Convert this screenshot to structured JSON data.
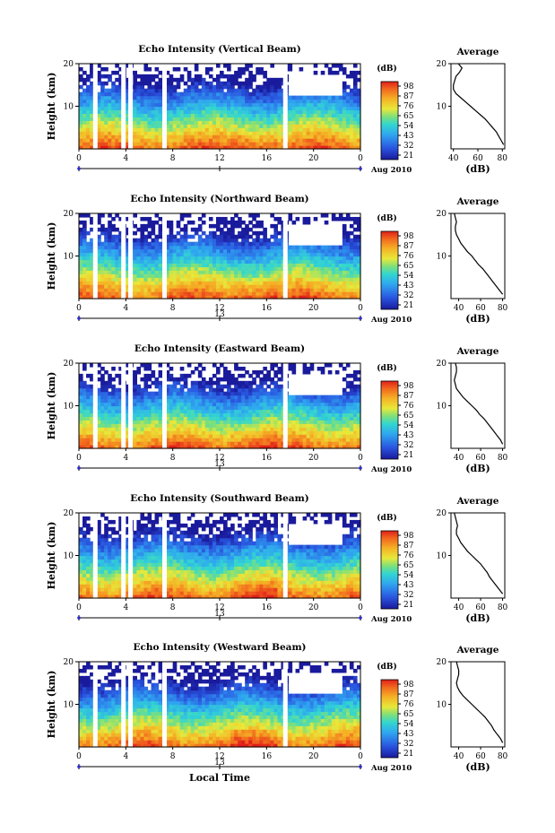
{
  "chart_data": [
    {
      "type": "heatmap",
      "title": "Echo Intensity (Vertical Beam)",
      "ylabel": "Height (km)",
      "ylim": [
        0,
        20
      ],
      "yticks": [
        "10",
        "20"
      ],
      "xlim": [
        0,
        24
      ],
      "xticks": [
        "0",
        "4",
        "8",
        "12",
        "16",
        "20",
        "0"
      ],
      "date_label": "Aug 2010",
      "date_tick": "",
      "colorbar": {
        "unit": "(dB)",
        "labels": [
          "98",
          "87",
          "76",
          "65",
          "54",
          "43",
          "32",
          "21"
        ]
      },
      "gaps": [
        1.4,
        3.8,
        4.4,
        7.3,
        17.6
      ],
      "average_profile": {
        "title": "Average",
        "xlabel": "(dB)",
        "xlim": [
          38,
          82
        ],
        "xticks": [
          "40",
          "60",
          "80"
        ],
        "yticks": [
          "10",
          "20"
        ],
        "height": [
          1,
          2,
          3,
          4,
          5,
          6,
          7,
          8,
          9,
          10,
          11,
          12,
          13,
          14,
          15,
          16,
          17,
          18,
          19,
          20
        ],
        "value": [
          81,
          79,
          77,
          75,
          72,
          69,
          66,
          62,
          58,
          54,
          50,
          46,
          42,
          40,
          40,
          41,
          42,
          45,
          47,
          44
        ]
      }
    },
    {
      "type": "heatmap",
      "title": "Echo Intensity (Northward Beam)",
      "ylabel": "Height (km)",
      "ylim": [
        0,
        20
      ],
      "yticks": [
        "10",
        "20"
      ],
      "xlim": [
        0,
        24
      ],
      "xticks": [
        "0",
        "4",
        "8",
        "12",
        "16",
        "20",
        "0"
      ],
      "date_label": "Aug 2010",
      "date_tick": "13",
      "colorbar": {
        "unit": "(dB)",
        "labels": [
          "98",
          "87",
          "76",
          "65",
          "54",
          "43",
          "32",
          "21"
        ]
      },
      "gaps": [
        1.4,
        3.8,
        4.4,
        7.3,
        17.6
      ],
      "average_profile": {
        "title": "Average",
        "xlabel": "(dB)",
        "xlim": [
          33,
          82
        ],
        "xticks": [
          "40",
          "60",
          "80"
        ],
        "yticks": [
          "10",
          "20"
        ],
        "height": [
          1,
          2,
          3,
          4,
          5,
          6,
          7,
          8,
          9,
          10,
          11,
          12,
          13,
          14,
          15,
          16,
          17,
          18,
          19,
          20
        ],
        "value": [
          80,
          77,
          74,
          71,
          68,
          65,
          62,
          58,
          55,
          52,
          48,
          45,
          42,
          40,
          38,
          37,
          37,
          38,
          37,
          36
        ]
      }
    },
    {
      "type": "heatmap",
      "title": "Echo Intensity (Eastward Beam)",
      "ylabel": "Height (km)",
      "ylim": [
        0,
        20
      ],
      "yticks": [
        "10",
        "20"
      ],
      "xlim": [
        0,
        24
      ],
      "xticks": [
        "0",
        "4",
        "8",
        "12",
        "16",
        "20",
        "0"
      ],
      "date_label": "Aug 2010",
      "date_tick": "13",
      "colorbar": {
        "unit": "(dB)",
        "labels": [
          "98",
          "87",
          "76",
          "65",
          "54",
          "43",
          "32",
          "21"
        ]
      },
      "gaps": [
        1.4,
        3.8,
        4.4,
        7.3,
        17.6
      ],
      "average_profile": {
        "title": "Average",
        "xlabel": "(dB)",
        "xlim": [
          33,
          82
        ],
        "xticks": [
          "40",
          "60",
          "80"
        ],
        "yticks": [
          "10",
          "20"
        ],
        "height": [
          1,
          2,
          3,
          4,
          5,
          6,
          7,
          8,
          9,
          10,
          11,
          12,
          13,
          14,
          15,
          16,
          17,
          18,
          19,
          20
        ],
        "value": [
          80,
          78,
          75,
          72,
          69,
          66,
          63,
          59,
          56,
          52,
          48,
          44,
          41,
          38,
          37,
          36,
          37,
          38,
          38,
          37
        ]
      }
    },
    {
      "type": "heatmap",
      "title": "Echo Intensity (Southward Beam)",
      "ylabel": "Height (km)",
      "ylim": [
        0,
        20
      ],
      "yticks": [
        "10",
        "20"
      ],
      "xlim": [
        0,
        24
      ],
      "xticks": [
        "0",
        "4",
        "8",
        "12",
        "16",
        "20",
        "0"
      ],
      "date_label": "Aug 2010",
      "date_tick": "13",
      "colorbar": {
        "unit": "(dB)",
        "labels": [
          "98",
          "87",
          "76",
          "65",
          "54",
          "43",
          "32",
          "21"
        ]
      },
      "gaps": [
        1.4,
        3.8,
        4.4,
        7.3,
        17.6
      ],
      "average_profile": {
        "title": "Average",
        "xlabel": "(dB)",
        "xlim": [
          33,
          82
        ],
        "xticks": [
          "40",
          "60",
          "80"
        ],
        "yticks": [
          "10",
          "20"
        ],
        "height": [
          1,
          2,
          3,
          4,
          5,
          6,
          7,
          8,
          9,
          10,
          11,
          12,
          13,
          14,
          15,
          16,
          17,
          18,
          19,
          20
        ],
        "value": [
          80,
          77,
          74,
          71,
          68,
          66,
          63,
          60,
          56,
          52,
          48,
          45,
          42,
          40,
          38,
          38,
          39,
          38,
          37,
          36
        ]
      }
    },
    {
      "type": "heatmap",
      "title": "Echo Intensity (Westward Beam)",
      "ylabel": "Height (km)",
      "ylim": [
        0,
        20
      ],
      "yticks": [
        "10",
        "20"
      ],
      "xlim": [
        0,
        24
      ],
      "xticks": [
        "0",
        "4",
        "8",
        "12",
        "16",
        "20",
        "0"
      ],
      "date_label": "Aug 2010",
      "date_tick": "13",
      "xlabel": "Local Time",
      "colorbar": {
        "unit": "(dB)",
        "labels": [
          "98",
          "87",
          "76",
          "65",
          "54",
          "43",
          "32",
          "21"
        ]
      },
      "gaps": [
        1.4,
        3.8,
        4.4,
        7.3,
        17.6
      ],
      "average_profile": {
        "title": "Average",
        "xlabel": "(dB)",
        "xlim": [
          33,
          82
        ],
        "xticks": [
          "40",
          "60",
          "80"
        ],
        "yticks": [
          "10",
          "20"
        ],
        "height": [
          1,
          2,
          3,
          4,
          5,
          6,
          7,
          8,
          9,
          10,
          11,
          12,
          13,
          14,
          15,
          16,
          17,
          18,
          19,
          20
        ],
        "value": [
          80,
          78,
          75,
          72,
          70,
          67,
          64,
          60,
          56,
          52,
          48,
          44,
          41,
          39,
          38,
          39,
          40,
          40,
          39,
          38
        ]
      }
    }
  ]
}
